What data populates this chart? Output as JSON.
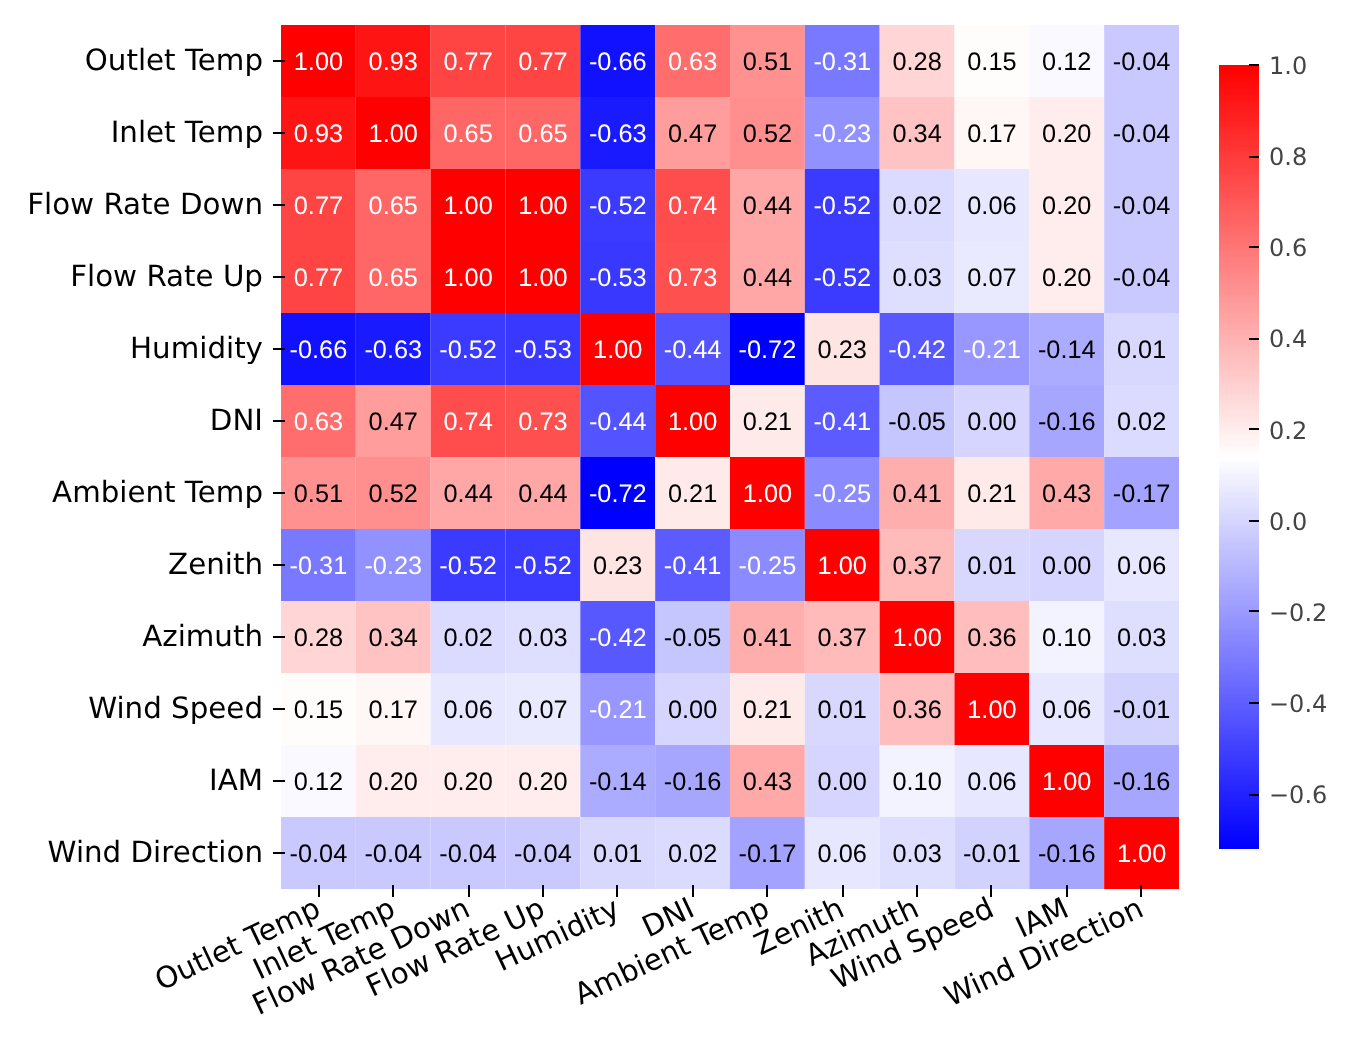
{
  "chart_data": {
    "type": "heatmap",
    "categories": [
      "Outlet Temp",
      "Inlet Temp",
      "Flow Rate Down",
      "Flow Rate Up",
      "Humidity",
      "DNI",
      "Ambient Temp",
      "Zenith",
      "Azimuth",
      "Wind Speed",
      "IAM",
      "Wind Direction"
    ],
    "y_categories": [
      "Outlet Temp",
      "Inlet Temp",
      "Flow Rate Down",
      "Flow Rate Up",
      "Humidity",
      "DNI",
      "Ambient Temp",
      "Zenith",
      "Azimuth",
      "Wind Speed",
      "IAM",
      "Wind Direction"
    ],
    "cells": [
      [
        1.0,
        0.93,
        0.77,
        0.77,
        -0.66,
        0.63,
        0.51,
        -0.31,
        0.28,
        0.15,
        0.12,
        -0.04
      ],
      [
        0.93,
        1.0,
        0.65,
        0.65,
        -0.63,
        0.47,
        0.52,
        -0.23,
        0.34,
        0.17,
        0.2,
        -0.04
      ],
      [
        0.77,
        0.65,
        1.0,
        1.0,
        -0.52,
        0.74,
        0.44,
        -0.52,
        0.02,
        0.06,
        0.2,
        -0.04
      ],
      [
        0.77,
        0.65,
        1.0,
        1.0,
        -0.53,
        0.73,
        0.44,
        -0.52,
        0.03,
        0.07,
        0.2,
        -0.04
      ],
      [
        -0.66,
        -0.63,
        -0.52,
        -0.53,
        1.0,
        -0.44,
        -0.72,
        0.23,
        -0.42,
        -0.21,
        -0.14,
        0.01
      ],
      [
        0.63,
        0.47,
        0.74,
        0.73,
        -0.44,
        1.0,
        0.21,
        -0.41,
        -0.05,
        0.0,
        -0.16,
        0.02
      ],
      [
        0.51,
        0.52,
        0.44,
        0.44,
        -0.72,
        0.21,
        1.0,
        -0.25,
        0.41,
        0.21,
        0.43,
        -0.17
      ],
      [
        -0.31,
        -0.23,
        -0.52,
        -0.52,
        0.23,
        -0.41,
        -0.25,
        1.0,
        0.37,
        0.01,
        0.0,
        0.06
      ],
      [
        0.28,
        0.34,
        0.02,
        0.03,
        -0.42,
        -0.05,
        0.41,
        0.37,
        1.0,
        0.36,
        0.1,
        0.03
      ],
      [
        0.15,
        0.17,
        0.06,
        0.07,
        -0.21,
        0.0,
        0.21,
        0.01,
        0.36,
        1.0,
        0.06,
        -0.01
      ],
      [
        0.12,
        0.2,
        0.2,
        0.2,
        -0.14,
        -0.16,
        0.43,
        0.0,
        0.1,
        0.06,
        1.0,
        -0.16
      ],
      [
        -0.04,
        -0.04,
        -0.04,
        -0.04,
        0.01,
        0.02,
        -0.17,
        0.06,
        0.03,
        -0.01,
        -0.16,
        1.0
      ]
    ],
    "cell_labels": [
      [
        "1.00",
        "0.93",
        "0.77",
        "0.77",
        "-0.66",
        "0.63",
        "0.51",
        "-0.31",
        "0.28",
        "0.15",
        "0.12",
        "-0.04"
      ],
      [
        "0.93",
        "1.00",
        "0.65",
        "0.65",
        "-0.63",
        "0.47",
        "0.52",
        "-0.23",
        "0.34",
        "0.17",
        "0.20",
        "-0.04"
      ],
      [
        "0.77",
        "0.65",
        "1.00",
        "1.00",
        "-0.52",
        "0.74",
        "0.44",
        "-0.52",
        "0.02",
        "0.06",
        "0.20",
        "-0.04"
      ],
      [
        "0.77",
        "0.65",
        "1.00",
        "1.00",
        "-0.53",
        "0.73",
        "0.44",
        "-0.52",
        "0.03",
        "0.07",
        "0.20",
        "-0.04"
      ],
      [
        "-0.66",
        "-0.63",
        "-0.52",
        "-0.53",
        "1.00",
        "-0.44",
        "-0.72",
        "0.23",
        "-0.42",
        "-0.21",
        "-0.14",
        "0.01"
      ],
      [
        "0.63",
        "0.47",
        "0.74",
        "0.73",
        "-0.44",
        "1.00",
        "0.21",
        "-0.41",
        "-0.05",
        "0.00",
        "-0.16",
        "0.02"
      ],
      [
        "0.51",
        "0.52",
        "0.44",
        "0.44",
        "-0.72",
        "0.21",
        "1.00",
        "-0.25",
        "0.41",
        "0.21",
        "0.43",
        "-0.17"
      ],
      [
        "-0.31",
        "-0.23",
        "-0.52",
        "-0.52",
        "0.23",
        "-0.41",
        "-0.25",
        "1.00",
        "0.37",
        "0.01",
        "0.00",
        "0.06"
      ],
      [
        "0.28",
        "0.34",
        "0.02",
        "0.03",
        "-0.42",
        "-0.05",
        "0.41",
        "0.37",
        "1.00",
        "0.36",
        "0.10",
        "0.03"
      ],
      [
        "0.15",
        "0.17",
        "0.06",
        "0.07",
        "-0.21",
        "0.00",
        "0.21",
        "0.01",
        "0.36",
        "1.00",
        "0.06",
        "-0.01"
      ],
      [
        "0.12",
        "0.20",
        "0.20",
        "0.20",
        "-0.14",
        "-0.16",
        "0.43",
        "0.00",
        "0.10",
        "0.06",
        "1.00",
        "-0.16"
      ],
      [
        "-0.04",
        "-0.04",
        "-0.04",
        "-0.04",
        "0.01",
        "0.02",
        "-0.17",
        "0.06",
        "0.03",
        "-0.01",
        "-0.16",
        "1.00"
      ]
    ],
    "clim": [
      -0.72,
      1.0
    ],
    "cticks": [
      {
        "value": -0.6,
        "label": "−0.6"
      },
      {
        "value": -0.4,
        "label": "−0.4"
      },
      {
        "value": -0.2,
        "label": "−0.2"
      },
      {
        "value": 0.0,
        "label": "0.0"
      },
      {
        "value": 0.2,
        "label": "0.2"
      },
      {
        "value": 0.4,
        "label": "0.4"
      },
      {
        "value": 0.6,
        "label": "0.6"
      },
      {
        "value": 0.8,
        "label": "0.8"
      },
      {
        "value": 1.0,
        "label": "1.0"
      }
    ]
  }
}
